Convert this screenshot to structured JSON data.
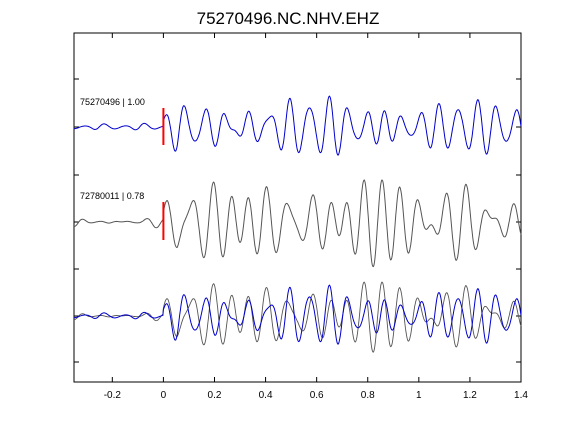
{
  "chart_data": {
    "type": "line",
    "title": "75270496.NC.NHV.EHZ",
    "xlabel": "",
    "ylabel": "",
    "xlim": [
      -0.35,
      1.4
    ],
    "xticks": [
      -0.2,
      0,
      0.2,
      0.4,
      0.6,
      0.8,
      1,
      1.2,
      1.4
    ],
    "xtick_labels": [
      "-0.2",
      "0",
      "0.2",
      "0.4",
      "0.6",
      "0.8",
      "1",
      "1.2",
      "1.4"
    ],
    "grid": false,
    "pick_time": 0,
    "colors": {
      "primary": "#0000cc",
      "secondary": "#555555",
      "pick": "#ff0000"
    },
    "traces": [
      {
        "label": "75270496 | 1.00",
        "color": "#0000cc",
        "style": "primary"
      },
      {
        "label": "72780011 | 0.78",
        "color": "#555555",
        "style": "secondary"
      },
      {
        "label": "",
        "color": "overlay",
        "style": "overlay"
      }
    ]
  }
}
